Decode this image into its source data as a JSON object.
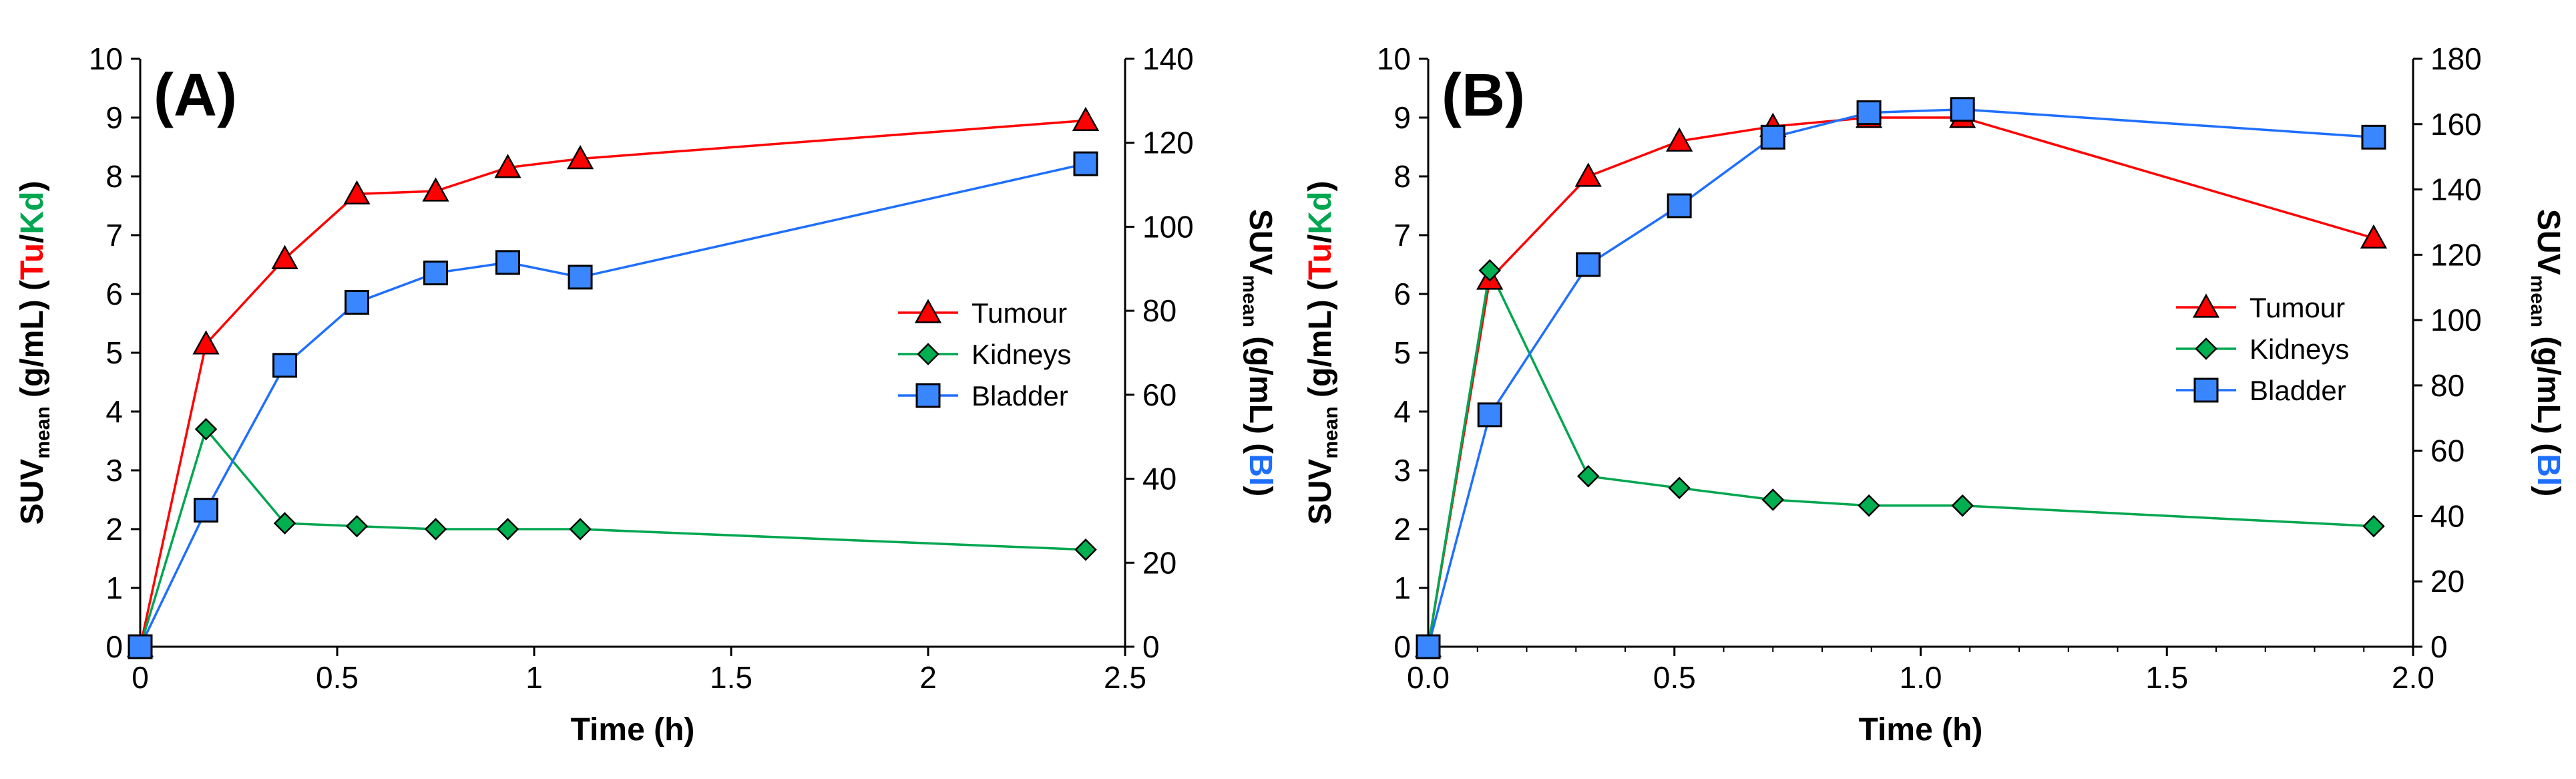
{
  "colors": {
    "tumour": "#ff0000",
    "kidneys": "#00a650",
    "bladder": "#1f6fff",
    "tumour_marker_fill": "#ff0000",
    "kidneys_marker_fill": "#00b050",
    "bladder_marker_fill": "#3a86ff"
  },
  "chart_data": [
    {
      "type": "line",
      "panel_label": "(A)",
      "xlabel": "Time (h)",
      "ylabel_left": {
        "prefix": "SUV",
        "subscript": "mean",
        "unit": " (g/mL) (",
        "part1": "Tu",
        "slash": "/",
        "part2": "Kd",
        "close": ")"
      },
      "ylabel_right": {
        "prefix": "SUV",
        "subscript": "mean",
        "unit": " (g/mL) (",
        "part1": "Bl",
        "close": ")"
      },
      "xlim": [
        0,
        2.5
      ],
      "ylim_left": [
        0,
        10
      ],
      "ylim_right": [
        0,
        140
      ],
      "xticks": [
        0,
        0.5,
        1,
        1.5,
        2,
        2.5
      ],
      "xtick_labels": [
        "0",
        "0.5",
        "1",
        "1.5",
        "2",
        "2.5"
      ],
      "yticks_left": [
        0,
        1,
        2,
        3,
        4,
        5,
        6,
        7,
        8,
        9,
        10
      ],
      "ytick_labels_left": [
        "0",
        "1",
        "2",
        "3",
        "4",
        "5",
        "6",
        "7",
        "8",
        "9",
        "10"
      ],
      "yticks_right": [
        0,
        20,
        40,
        60,
        80,
        100,
        120,
        140
      ],
      "ytick_labels_right": [
        "0",
        "20",
        "40",
        "60",
        "80",
        "100",
        "120",
        "140"
      ],
      "minor_x_ticks": false,
      "grid": false,
      "legend_position": "right-middle",
      "series": [
        {
          "name": "Tumour",
          "axis": "left",
          "color_key": "tumour",
          "marker": "triangle",
          "x": [
            0,
            0.167,
            0.367,
            0.55,
            0.75,
            0.933,
            1.117,
            2.4
          ],
          "y": [
            0,
            5.15,
            6.6,
            7.7,
            7.75,
            8.15,
            8.3,
            8.95
          ]
        },
        {
          "name": "Kidneys",
          "axis": "left",
          "color_key": "kidneys",
          "marker": "diamond",
          "x": [
            0,
            0.167,
            0.367,
            0.55,
            0.75,
            0.933,
            1.117,
            2.4
          ],
          "y": [
            0,
            3.7,
            2.1,
            2.05,
            2.0,
            2.0,
            2.0,
            1.65
          ]
        },
        {
          "name": "Bladder",
          "axis": "right",
          "color_key": "bladder",
          "marker": "square",
          "x": [
            0,
            0.167,
            0.367,
            0.55,
            0.75,
            0.933,
            1.117,
            2.4
          ],
          "y": [
            0,
            32.5,
            67,
            82,
            89,
            91.5,
            88,
            115
          ]
        }
      ]
    },
    {
      "type": "line",
      "panel_label": "(B)",
      "xlabel": "Time (h)",
      "ylabel_left": {
        "prefix": "SUV",
        "subscript": "mean",
        "unit": " (g/mL) (",
        "part1": "Tu",
        "slash": "/",
        "part2": "Kd",
        "close": ")"
      },
      "ylabel_right": {
        "prefix": "SUV",
        "subscript": "mean",
        "unit": " (g/mL) (",
        "part1": "Bl",
        "close": ")"
      },
      "xlim": [
        0,
        2.0
      ],
      "ylim_left": [
        0,
        10
      ],
      "ylim_right": [
        0,
        180
      ],
      "xticks": [
        0,
        0.5,
        1,
        1.5,
        2
      ],
      "xtick_labels": [
        "0.0",
        "0.5",
        "1.0",
        "1.5",
        "2.0"
      ],
      "yticks_left": [
        0,
        1,
        2,
        3,
        4,
        5,
        6,
        7,
        8,
        9,
        10
      ],
      "ytick_labels_left": [
        "0",
        "1",
        "2",
        "3",
        "4",
        "5",
        "6",
        "7",
        "8",
        "9",
        "10"
      ],
      "yticks_right": [
        0,
        20,
        40,
        60,
        80,
        100,
        120,
        140,
        160,
        180
      ],
      "ytick_labels_right": [
        "0",
        "20",
        "40",
        "60",
        "80",
        "100",
        "120",
        "140",
        "160",
        "180"
      ],
      "minor_x_ticks": true,
      "grid": false,
      "legend_position": "right-middle",
      "series": [
        {
          "name": "Tumour",
          "axis": "left",
          "color_key": "tumour",
          "marker": "triangle",
          "x": [
            0,
            0.125,
            0.325,
            0.51,
            0.7,
            0.895,
            1.085,
            1.92
          ],
          "y": [
            0,
            6.25,
            8.0,
            8.6,
            8.85,
            9.0,
            9.0,
            6.95
          ]
        },
        {
          "name": "Kidneys",
          "axis": "left",
          "color_key": "kidneys",
          "marker": "diamond",
          "x": [
            0,
            0.125,
            0.325,
            0.51,
            0.7,
            0.895,
            1.085,
            1.92
          ],
          "y": [
            0,
            6.4,
            2.9,
            2.7,
            2.5,
            2.4,
            2.4,
            2.05
          ]
        },
        {
          "name": "Bladder",
          "axis": "right",
          "color_key": "bladder",
          "marker": "square",
          "x": [
            0,
            0.125,
            0.325,
            0.51,
            0.7,
            0.895,
            1.085,
            1.92
          ],
          "y": [
            0,
            71,
            117,
            135,
            156,
            163.5,
            164.5,
            156
          ]
        }
      ]
    }
  ]
}
